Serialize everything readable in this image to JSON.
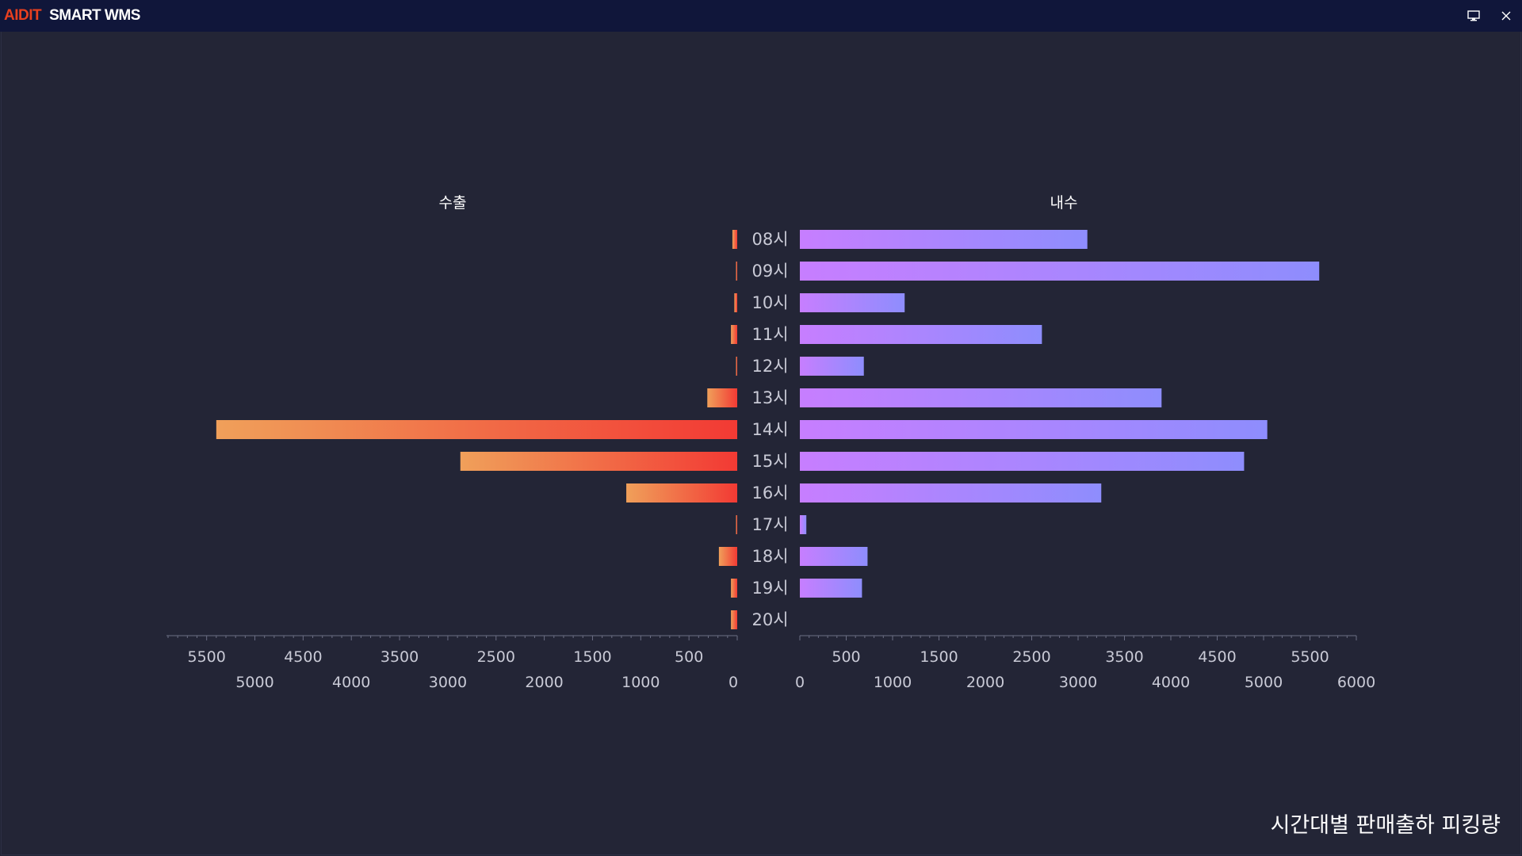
{
  "app": {
    "brand_part1": "AIDIT",
    "brand_part2": "SMART WMS",
    "monitor_icon": "monitor-icon",
    "close_icon": "close-icon"
  },
  "footer": {
    "title": "시간대별 판매출하 피킹량"
  },
  "colors": {
    "background": "#232536",
    "titlebar": "#10163a",
    "left_bar_start": "#f0a05a",
    "left_bar_end": "#f23a34",
    "right_bar_start": "#c77eff",
    "right_bar_end": "#8e8dfd",
    "axis_text": "#c9cad6",
    "axis_line": "#6b6e84"
  },
  "chart_data": {
    "type": "bar",
    "orientation": "horizontal-butterfly",
    "categories": [
      "08시",
      "09시",
      "10시",
      "11시",
      "12시",
      "13시",
      "14시",
      "15시",
      "16시",
      "17시",
      "18시",
      "19시",
      "20시"
    ],
    "series": [
      {
        "name": "수출",
        "side": "left",
        "values": [
          50,
          10,
          30,
          65,
          10,
          310,
          5400,
          2870,
          1150,
          5,
          190,
          65,
          65
        ],
        "axis_range": [
          0,
          5900
        ],
        "ticks_row1": [
          500,
          1500,
          2500,
          3500,
          4500,
          5500
        ],
        "ticks_row2": [
          0,
          1000,
          2000,
          3000,
          4000,
          5000
        ]
      },
      {
        "name": "내수",
        "side": "right",
        "values": [
          3100,
          5600,
          1130,
          2610,
          690,
          3900,
          5040,
          4790,
          3250,
          70,
          730,
          670,
          0
        ],
        "axis_range": [
          0,
          6000
        ],
        "ticks_row1": [
          500,
          1500,
          2500,
          3500,
          4500,
          5500
        ],
        "ticks_row2": [
          0,
          1000,
          2000,
          3000,
          4000,
          5000,
          6000
        ]
      }
    ],
    "grid": false,
    "legend": "none"
  }
}
